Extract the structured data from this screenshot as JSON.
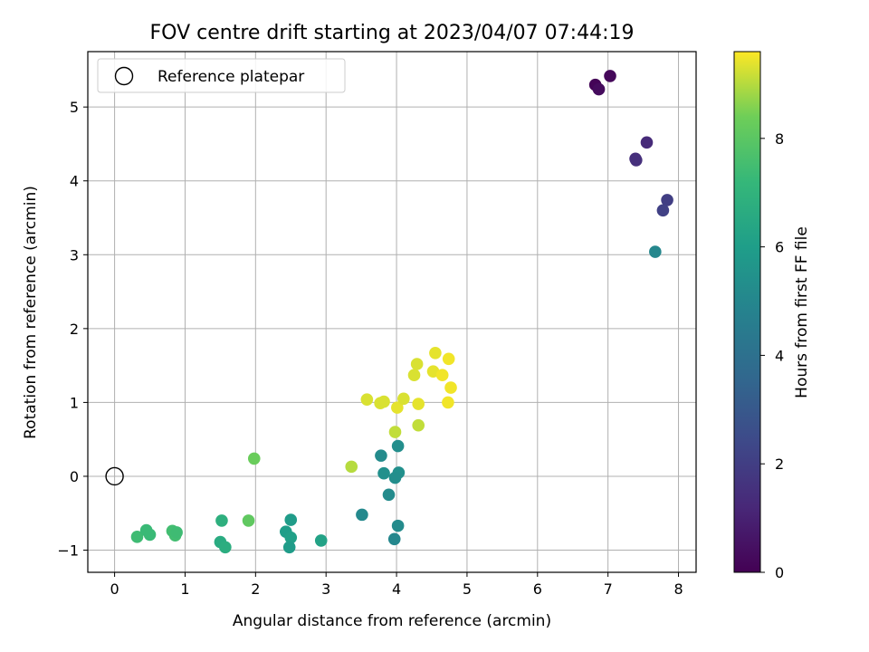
{
  "chart_data": {
    "type": "scatter",
    "title": "FOV centre drift starting at 2023/04/07 07:44:19",
    "xlabel": "Angular distance from reference (arcmin)",
    "ylabel": "Rotation from reference (arcmin)",
    "xlim": [
      -0.38,
      8.25
    ],
    "ylim": [
      -1.3,
      5.75
    ],
    "xticks": [
      0,
      1,
      2,
      3,
      4,
      5,
      6,
      7,
      8
    ],
    "yticks": [
      -1,
      0,
      1,
      2,
      3,
      4,
      5
    ],
    "ytick_labels": [
      "−1",
      "0",
      "1",
      "2",
      "3",
      "4",
      "5"
    ],
    "grid": true,
    "legend": {
      "position": "upper-left",
      "entries": [
        "Reference platepar"
      ]
    },
    "reference_point": {
      "name": "Reference platepar",
      "x": 0,
      "y": 0,
      "marker": "open-circle"
    },
    "colorbar": {
      "label": "Hours from first FF file",
      "range": [
        0,
        9.6
      ],
      "ticks": [
        0,
        2,
        4,
        6,
        8
      ],
      "colormap": "viridis"
    },
    "points": [
      {
        "x": 6.82,
        "y": 5.3,
        "c": 0.1
      },
      {
        "x": 6.87,
        "y": 5.24,
        "c": 0.3
      },
      {
        "x": 7.03,
        "y": 5.42,
        "c": 0.2
      },
      {
        "x": 7.55,
        "y": 4.52,
        "c": 1.3
      },
      {
        "x": 7.39,
        "y": 4.3,
        "c": 1.4
      },
      {
        "x": 7.4,
        "y": 4.28,
        "c": 1.5
      },
      {
        "x": 7.84,
        "y": 3.74,
        "c": 2.0
      },
      {
        "x": 7.78,
        "y": 3.6,
        "c": 2.1
      },
      {
        "x": 7.67,
        "y": 3.04,
        "c": 5.0
      },
      {
        "x": 3.78,
        "y": 0.28,
        "c": 5.2
      },
      {
        "x": 4.02,
        "y": 0.41,
        "c": 5.3
      },
      {
        "x": 3.82,
        "y": 0.04,
        "c": 5.4
      },
      {
        "x": 4.03,
        "y": 0.05,
        "c": 5.4
      },
      {
        "x": 3.98,
        "y": -0.02,
        "c": 5.3
      },
      {
        "x": 3.89,
        "y": -0.25,
        "c": 5.2
      },
      {
        "x": 3.51,
        "y": -0.52,
        "c": 5.1
      },
      {
        "x": 4.02,
        "y": -0.67,
        "c": 5.2
      },
      {
        "x": 3.97,
        "y": -0.85,
        "c": 5.0
      },
      {
        "x": 2.5,
        "y": -0.59,
        "c": 5.9
      },
      {
        "x": 2.43,
        "y": -0.75,
        "c": 6.0
      },
      {
        "x": 2.5,
        "y": -0.83,
        "c": 6.1
      },
      {
        "x": 2.48,
        "y": -0.96,
        "c": 5.9
      },
      {
        "x": 2.93,
        "y": -0.87,
        "c": 6.2
      },
      {
        "x": 1.52,
        "y": -0.6,
        "c": 6.8
      },
      {
        "x": 1.5,
        "y": -0.89,
        "c": 6.6
      },
      {
        "x": 1.57,
        "y": -0.96,
        "c": 6.7
      },
      {
        "x": 0.32,
        "y": -0.82,
        "c": 7.4
      },
      {
        "x": 0.45,
        "y": -0.73,
        "c": 7.3
      },
      {
        "x": 0.5,
        "y": -0.79,
        "c": 7.3
      },
      {
        "x": 0.82,
        "y": -0.74,
        "c": 7.5
      },
      {
        "x": 0.86,
        "y": -0.8,
        "c": 7.5
      },
      {
        "x": 0.88,
        "y": -0.76,
        "c": 7.4
      },
      {
        "x": 1.9,
        "y": -0.6,
        "c": 8.1
      },
      {
        "x": 1.98,
        "y": 0.24,
        "c": 8.3
      },
      {
        "x": 3.36,
        "y": 0.13,
        "c": 9.0
      },
      {
        "x": 3.98,
        "y": 0.6,
        "c": 9.1
      },
      {
        "x": 4.31,
        "y": 0.69,
        "c": 9.1
      },
      {
        "x": 3.58,
        "y": 1.04,
        "c": 9.3
      },
      {
        "x": 3.77,
        "y": 0.99,
        "c": 9.3
      },
      {
        "x": 3.82,
        "y": 1.01,
        "c": 9.3
      },
      {
        "x": 4.01,
        "y": 0.93,
        "c": 9.4
      },
      {
        "x": 4.1,
        "y": 1.05,
        "c": 9.3
      },
      {
        "x": 4.31,
        "y": 0.98,
        "c": 9.4
      },
      {
        "x": 4.73,
        "y": 1.0,
        "c": 9.5
      },
      {
        "x": 4.25,
        "y": 1.37,
        "c": 9.3
      },
      {
        "x": 4.29,
        "y": 1.52,
        "c": 9.3
      },
      {
        "x": 4.52,
        "y": 1.42,
        "c": 9.4
      },
      {
        "x": 4.65,
        "y": 1.37,
        "c": 9.5
      },
      {
        "x": 4.55,
        "y": 1.67,
        "c": 9.4
      },
      {
        "x": 4.74,
        "y": 1.59,
        "c": 9.5
      },
      {
        "x": 4.77,
        "y": 1.2,
        "c": 9.5
      }
    ]
  }
}
